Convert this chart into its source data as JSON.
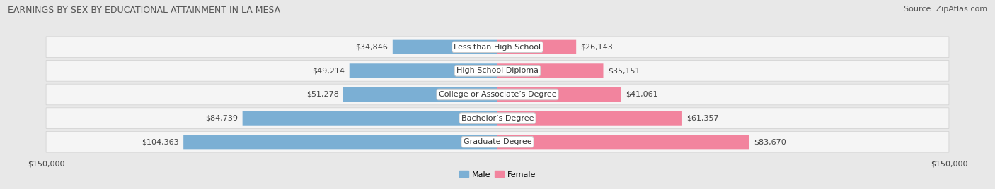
{
  "title": "EARNINGS BY SEX BY EDUCATIONAL ATTAINMENT IN LA MESA",
  "source": "Source: ZipAtlas.com",
  "categories": [
    "Less than High School",
    "High School Diploma",
    "College or Associate’s Degree",
    "Bachelor’s Degree",
    "Graduate Degree"
  ],
  "male_values": [
    34846,
    49214,
    51278,
    84739,
    104363
  ],
  "female_values": [
    26143,
    35151,
    41061,
    61357,
    83670
  ],
  "male_color": "#7bafd4",
  "female_color": "#f2849e",
  "max_value": 150000,
  "bar_height": 0.6,
  "background_color": "#e8e8e8",
  "row_bg_color": "#f0f0f0",
  "title_fontsize": 9,
  "source_fontsize": 8,
  "label_fontsize": 8,
  "value_fontsize": 8,
  "cat_fontsize": 8
}
